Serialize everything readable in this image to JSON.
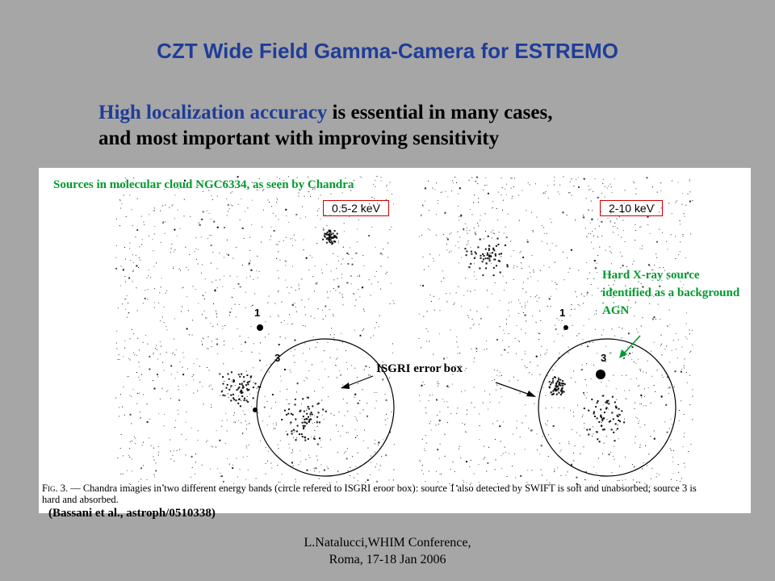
{
  "slide": {
    "title": "CZT Wide Field Gamma-Camera for ESTREMO",
    "subtitle_highlight": "High localization accuracy",
    "subtitle_rest_line1": " is essential in many cases,",
    "subtitle_line2": "and most important with improving sensitivity",
    "footer_line1": "L.Natalucci,WHIM Conference,",
    "footer_line2": "Roma, 17-18 Jan 2006",
    "reference": "(Bassani et al., astroph/0510338)"
  },
  "figure": {
    "sources_note": "Sources in molecular cloud  NGC6334, as seen by Chandra",
    "band_left": "0.5-2 keV",
    "band_right": "2-10 keV",
    "hard_xray_note": "Hard X-ray source identified as a background AGN",
    "isgri_label": "ISGRI error box",
    "source_1": "1",
    "source_3": "3",
    "caption_fig": "Fig. 3.",
    "caption_text": "— Chandra imagies in two different energy bands (circle refered to ISGRI eroor box): source 1 also detected by SWIFT is soft and unabsorbed; source 3 is hard and absorbed.",
    "colors": {
      "title_blue": "#1f3d99",
      "note_green": "#009a2e",
      "box_red": "#d00000",
      "background_gray": "#a6a6a6"
    }
  }
}
